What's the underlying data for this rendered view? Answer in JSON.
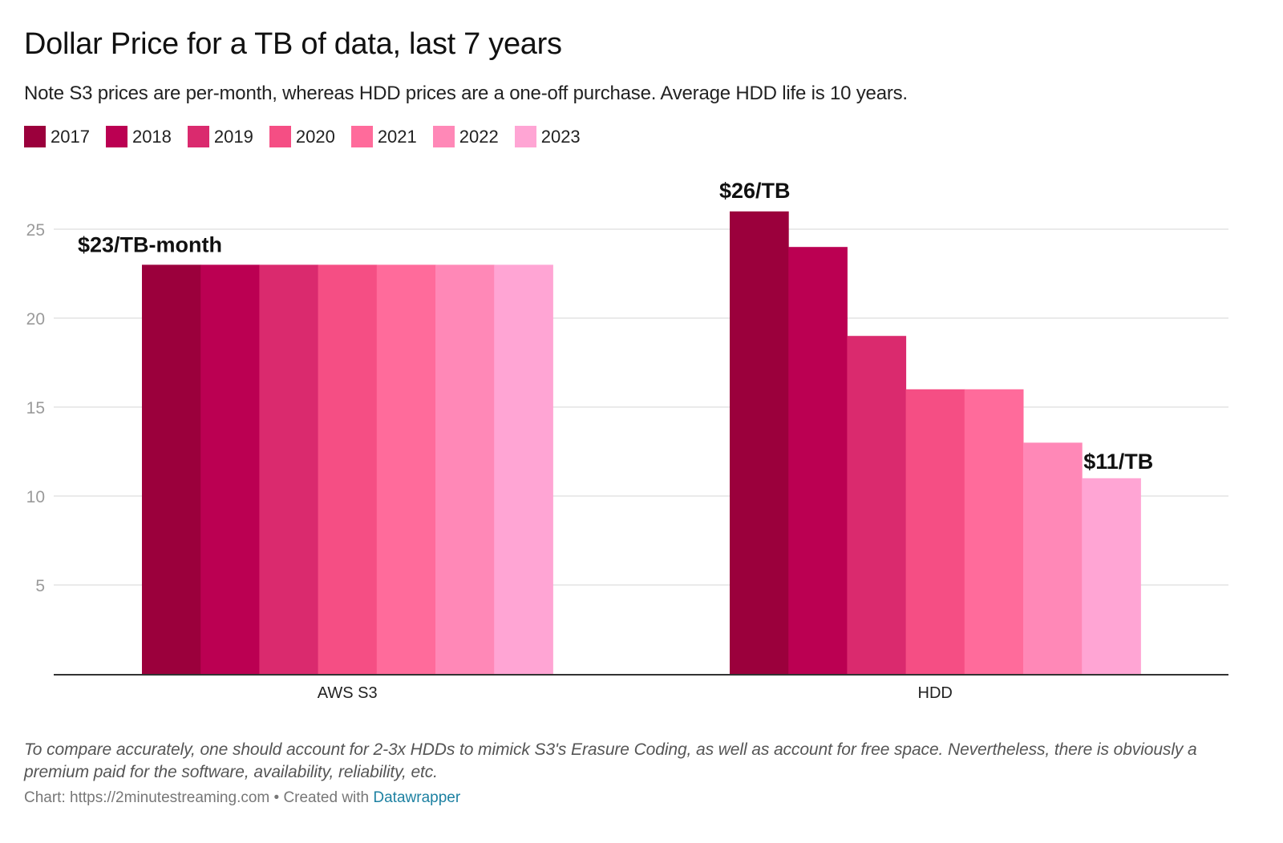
{
  "header": {
    "title": "Dollar Price for a TB of data, last 7 years",
    "subtitle": "Note S3 prices are per-month, whereas HDD prices are a one-off purchase. Average HDD life is 10 years."
  },
  "legend": [
    {
      "label": "2017",
      "color": "#9b003c"
    },
    {
      "label": "2018",
      "color": "#bb0052"
    },
    {
      "label": "2019",
      "color": "#da2a6e"
    },
    {
      "label": "2020",
      "color": "#f54e84"
    },
    {
      "label": "2021",
      "color": "#ff6b9b"
    },
    {
      "label": "2022",
      "color": "#ff88b7"
    },
    {
      "label": "2023",
      "color": "#ffa5d4"
    }
  ],
  "footer": {
    "notes": "To compare accurately, one should account for 2-3x HDDs to mimick S3's Erasure Coding, as well as account for free space. Nevertheless, there is obviously a premium paid for the software, availability, reliability, etc.",
    "source_prefix": "Chart: https://2minutestreaming.com • Created with ",
    "source_link": "Datawrapper"
  },
  "chart_data": {
    "type": "bar",
    "title": "Dollar Price for a TB of data, last 7 years",
    "xlabel": "",
    "ylabel": "",
    "categories": [
      "AWS S3",
      "HDD"
    ],
    "series": [
      {
        "name": "2017",
        "values": [
          23,
          26
        ]
      },
      {
        "name": "2018",
        "values": [
          23,
          24
        ]
      },
      {
        "name": "2019",
        "values": [
          23,
          19
        ]
      },
      {
        "name": "2020",
        "values": [
          23,
          16
        ]
      },
      {
        "name": "2021",
        "values": [
          23,
          16
        ]
      },
      {
        "name": "2022",
        "values": [
          23,
          13
        ]
      },
      {
        "name": "2023",
        "values": [
          23,
          11
        ]
      }
    ],
    "ylim": [
      0,
      27
    ],
    "yticks": [
      5,
      10,
      15,
      20,
      25
    ],
    "grid": true,
    "legend_position": "top-left",
    "annotations": [
      {
        "text": "$23/TB-month",
        "category": "AWS S3",
        "series": "2017"
      },
      {
        "text": "$26/TB",
        "category": "HDD",
        "series": "2017"
      },
      {
        "text": "$11/TB",
        "category": "HDD",
        "series": "2023"
      }
    ]
  }
}
